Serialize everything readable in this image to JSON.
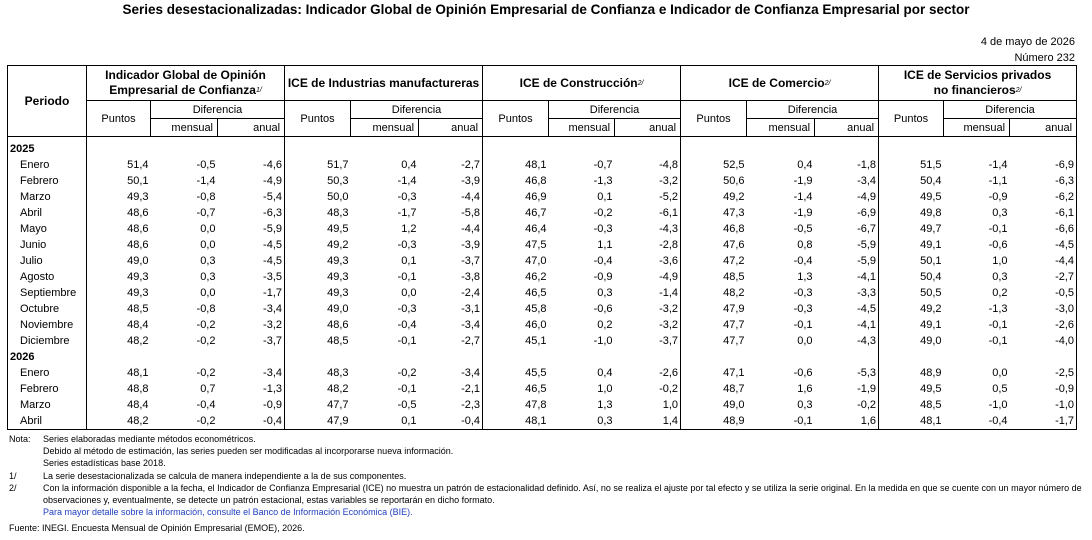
{
  "title": "Series desestacionalizadas: Indicador Global de Opinión Empresarial de Confianza e Indicador de Confianza Empresarial por sector",
  "date": "4 de mayo de 2026",
  "number": "Número 232",
  "header": {
    "periodo": "Periodo",
    "groups": [
      {
        "line1": "Indicador Global de Opinión",
        "line2": "Empresarial de Confianza",
        "sup": "1/"
      },
      {
        "line1": "ICE de Industrias manufactureras",
        "line2": "",
        "sup": ""
      },
      {
        "line1": "ICE de Construcción",
        "line2": "",
        "sup": "2/"
      },
      {
        "line1": "ICE de Comercio",
        "line2": "",
        "sup": "2/"
      },
      {
        "line1": "ICE de Servicios privados",
        "line2": "no financieros",
        "sup": "2/"
      }
    ],
    "puntos": "Puntos",
    "diferencia": "Diferencia",
    "mensual": "mensual",
    "anual": "anual"
  },
  "years": [
    {
      "year": "2025",
      "rows": [
        {
          "month": "Enero",
          "v": [
            "51,4",
            "-0,5",
            "-4,6",
            "51,7",
            "0,4",
            "-2,7",
            "48,1",
            "-0,7",
            "-4,8",
            "52,5",
            "0,4",
            "-1,8",
            "51,5",
            "-1,4",
            "-6,9"
          ]
        },
        {
          "month": "Febrero",
          "v": [
            "50,1",
            "-1,4",
            "-4,9",
            "50,3",
            "-1,4",
            "-3,9",
            "46,8",
            "-1,3",
            "-3,2",
            "50,6",
            "-1,9",
            "-3,4",
            "50,4",
            "-1,1",
            "-6,3"
          ]
        },
        {
          "month": "Marzo",
          "v": [
            "49,3",
            "-0,8",
            "-5,4",
            "50,0",
            "-0,3",
            "-4,4",
            "46,9",
            "0,1",
            "-5,2",
            "49,2",
            "-1,4",
            "-4,9",
            "49,5",
            "-0,9",
            "-6,2"
          ]
        },
        {
          "month": "Abril",
          "v": [
            "48,6",
            "-0,7",
            "-6,3",
            "48,3",
            "-1,7",
            "-5,8",
            "46,7",
            "-0,2",
            "-6,1",
            "47,3",
            "-1,9",
            "-6,9",
            "49,8",
            "0,3",
            "-6,1"
          ]
        },
        {
          "month": "Mayo",
          "v": [
            "48,6",
            "0,0",
            "-5,9",
            "49,5",
            "1,2",
            "-4,4",
            "46,4",
            "-0,3",
            "-4,3",
            "46,8",
            "-0,5",
            "-6,7",
            "49,7",
            "-0,1",
            "-6,6"
          ]
        },
        {
          "month": "Junio",
          "v": [
            "48,6",
            "0,0",
            "-4,5",
            "49,2",
            "-0,3",
            "-3,9",
            "47,5",
            "1,1",
            "-2,8",
            "47,6",
            "0,8",
            "-5,9",
            "49,1",
            "-0,6",
            "-4,5"
          ]
        },
        {
          "month": "Julio",
          "v": [
            "49,0",
            "0,3",
            "-4,5",
            "49,3",
            "0,1",
            "-3,7",
            "47,0",
            "-0,4",
            "-3,6",
            "47,2",
            "-0,4",
            "-5,9",
            "50,1",
            "1,0",
            "-4,4"
          ]
        },
        {
          "month": "Agosto",
          "v": [
            "49,3",
            "0,3",
            "-3,5",
            "49,3",
            "-0,1",
            "-3,8",
            "46,2",
            "-0,9",
            "-4,9",
            "48,5",
            "1,3",
            "-4,1",
            "50,4",
            "0,3",
            "-2,7"
          ]
        },
        {
          "month": "Septiembre",
          "v": [
            "49,3",
            "0,0",
            "-1,7",
            "49,3",
            "0,0",
            "-2,4",
            "46,5",
            "0,3",
            "-1,4",
            "48,2",
            "-0,3",
            "-3,3",
            "50,5",
            "0,2",
            "-0,5"
          ]
        },
        {
          "month": "Octubre",
          "v": [
            "48,5",
            "-0,8",
            "-3,4",
            "49,0",
            "-0,3",
            "-3,1",
            "45,8",
            "-0,6",
            "-3,2",
            "47,9",
            "-0,3",
            "-4,5",
            "49,2",
            "-1,3",
            "-3,0"
          ]
        },
        {
          "month": "Noviembre",
          "v": [
            "48,4",
            "-0,2",
            "-3,2",
            "48,6",
            "-0,4",
            "-3,4",
            "46,0",
            "0,2",
            "-3,2",
            "47,7",
            "-0,1",
            "-4,1",
            "49,1",
            "-0,1",
            "-2,6"
          ]
        },
        {
          "month": "Diciembre",
          "v": [
            "48,2",
            "-0,2",
            "-3,7",
            "48,5",
            "-0,1",
            "-2,7",
            "45,1",
            "-1,0",
            "-3,7",
            "47,7",
            "0,0",
            "-4,3",
            "49,0",
            "-0,1",
            "-4,0"
          ]
        }
      ]
    },
    {
      "year": "2026",
      "rows": [
        {
          "month": "Enero",
          "v": [
            "48,1",
            "-0,2",
            "-3,4",
            "48,3",
            "-0,2",
            "-3,4",
            "45,5",
            "0,4",
            "-2,6",
            "47,1",
            "-0,6",
            "-5,3",
            "48,9",
            "0,0",
            "-2,5"
          ]
        },
        {
          "month": "Febrero",
          "v": [
            "48,8",
            "0,7",
            "-1,3",
            "48,2",
            "-0,1",
            "-2,1",
            "46,5",
            "1,0",
            "-0,2",
            "48,7",
            "1,6",
            "-1,9",
            "49,5",
            "0,5",
            "-0,9"
          ]
        },
        {
          "month": "Marzo",
          "v": [
            "48,4",
            "-0,4",
            "-0,9",
            "47,7",
            "-0,5",
            "-2,3",
            "47,8",
            "1,3",
            "1,0",
            "49,0",
            "0,3",
            "-0,2",
            "48,5",
            "-1,0",
            "-1,0"
          ]
        },
        {
          "month": "Abril",
          "v": [
            "48,2",
            "-0,2",
            "-0,4",
            "47,9",
            "0,1",
            "-0,4",
            "48,1",
            "0,3",
            "1,4",
            "48,9",
            "-0,1",
            "1,6",
            "48,1",
            "-0,4",
            "-1,7"
          ]
        }
      ]
    }
  ],
  "notes": [
    {
      "k": "Nota:",
      "v": "Series elaboradas mediante métodos econométricos."
    },
    {
      "k": "",
      "v": "Debido al método de estimación, las series pueden ser modificadas al incorporarse nueva información."
    },
    {
      "k": "",
      "v": "Series estadísticas base 2018."
    },
    {
      "k": "1/",
      "v": "La serie desestacionalizada se calcula de manera independiente a la de sus componentes."
    },
    {
      "k": "2/",
      "v": "Con la información disponible a la fecha, el Indicador de Confianza Empresarial (ICE) no muestra un patrón de estacionalidad definido. Así, no se realiza el ajuste por tal efecto y se utiliza la serie original. En la medida en que se cuente con un mayor número de observaciones y, eventualmente, se detecte un patrón estacional, estas variables se reportarán en dicho formato."
    }
  ],
  "link_text": "Para mayor detalle sobre la información, consulte el Banco de Información Económica (BIE).",
  "source": "Fuente: INEGI. Encuesta Mensual de Opinión Empresarial (EMOE), 2026."
}
